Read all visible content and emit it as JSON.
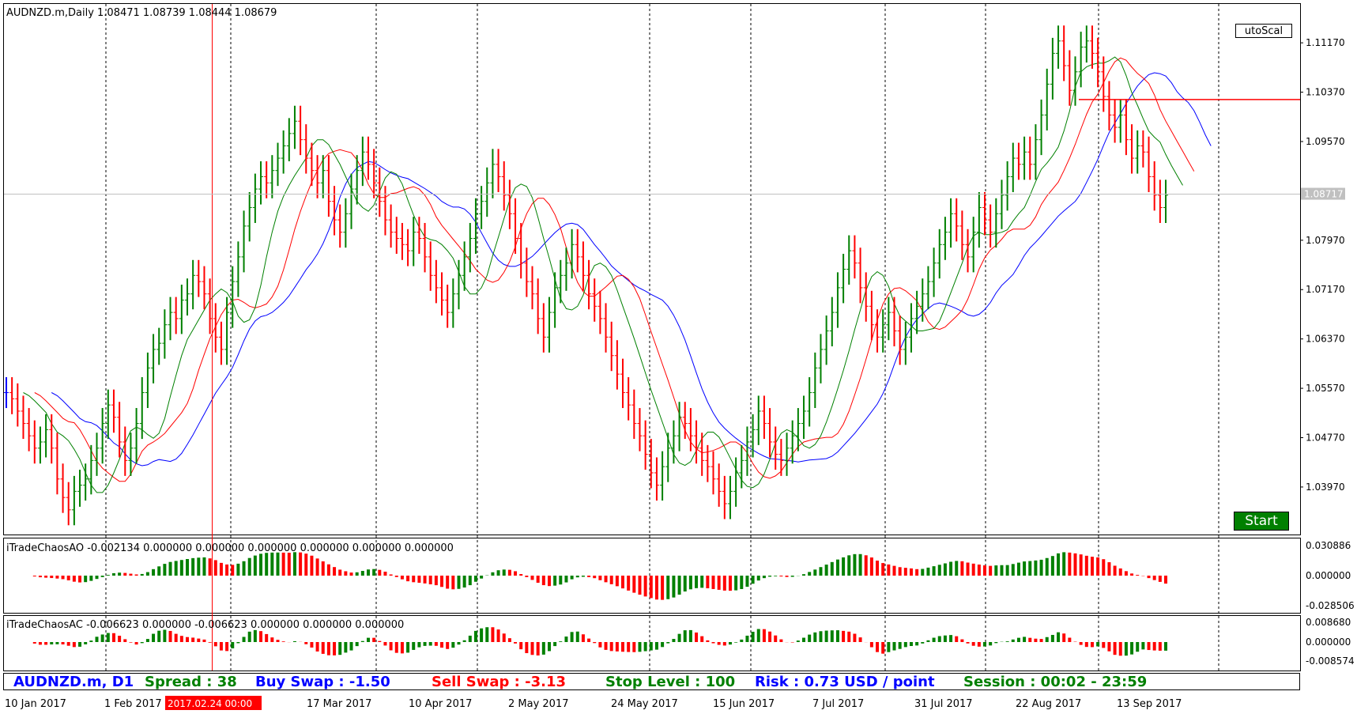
{
  "main_title": "AUDNZD.m,Daily  1.08471 1.08739 1.08444 1.08679",
  "current_price_label": "1.08717",
  "price_axis_labels": [
    "1.11170",
    "1.10370",
    "1.09570",
    "1.08717",
    "1.07970",
    "1.07170",
    "1.06370",
    "1.05570",
    "1.04770",
    "1.03970"
  ],
  "buttons": {
    "auto_scale": "utoScal",
    "start": "Start"
  },
  "ao": {
    "title": "iTradeChaosAO -0.002134 0.000000 0.000000 0.000000 0.000000 0.000000 0.000000",
    "axis_labels": [
      "0.030886",
      "0.000000",
      "-0.028506"
    ]
  },
  "ac": {
    "title": "iTradeChaosAC -0.006623 0.000000 -0.006623 0.000000 0.000000 0.000000",
    "axis_labels": [
      "0.008680",
      "0.000000",
      "-0.008574"
    ]
  },
  "status_bar": {
    "symbol": "AUDNZD.m, D1",
    "spread": "Spread :  38",
    "buy_swap": "Buy Swap :  -1.50",
    "sell_swap": "Sell Swap :  -3.13",
    "stop_level": "Stop Level :  100",
    "risk": "Risk :  0.73 USD / point",
    "session": "Session :  00:02 - 23:59"
  },
  "date_labels": [
    "10 Jan 2017",
    "1 Feb 2017",
    "17 Mar 2017",
    "10 Apr 2017",
    "2 May 2017",
    "24 May 2017",
    "15 Jun 2017",
    "7 Jul 2017",
    "31 Jul 2017",
    "22 Aug 2017",
    "13 Sep 2017"
  ],
  "crosshair_date": "2017.02.24 00:00",
  "colors": {
    "bull": "#008000",
    "bear": "#ff0000",
    "neutral": "#0000ff",
    "jaw": "#0000ff",
    "teeth": "#ff0000",
    "lips": "#008000",
    "pink": "#ff00ff"
  },
  "chart_data": {
    "type": "candlestick",
    "symbol": "AUDNZD.m",
    "timeframe": "Daily",
    "ohlc_last": {
      "open": 1.08471,
      "high": 1.08739,
      "low": 1.08444,
      "close": 1.08679
    },
    "y_range": [
      1.032,
      1.118
    ],
    "x_range": [
      "2017-01-01",
      "2017-09-25"
    ],
    "bars_close": [
      1.055,
      1.054,
      1.052,
      1.05,
      1.048,
      1.046,
      1.047,
      1.049,
      1.046,
      1.041,
      1.038,
      1.036,
      1.039,
      1.04,
      1.041,
      1.044,
      1.046,
      1.05,
      1.053,
      1.051,
      1.047,
      1.044,
      1.046,
      1.05,
      1.055,
      1.059,
      1.062,
      1.063,
      1.066,
      1.068,
      1.067,
      1.07,
      1.071,
      1.074,
      1.073,
      1.071,
      1.067,
      1.064,
      1.062,
      1.068,
      1.073,
      1.077,
      1.082,
      1.085,
      1.088,
      1.09,
      1.089,
      1.091,
      1.093,
      1.095,
      1.097,
      1.099,
      1.096,
      1.093,
      1.091,
      1.089,
      1.091,
      1.086,
      1.083,
      1.081,
      1.084,
      1.088,
      1.091,
      1.094,
      1.092,
      1.089,
      1.086,
      1.083,
      1.081,
      1.08,
      1.079,
      1.078,
      1.081,
      1.08,
      1.077,
      1.074,
      1.072,
      1.07,
      1.068,
      1.071,
      1.074,
      1.077,
      1.08,
      1.084,
      1.086,
      1.089,
      1.092,
      1.09,
      1.087,
      1.084,
      1.08,
      1.076,
      1.073,
      1.071,
      1.067,
      1.064,
      1.068,
      1.072,
      1.074,
      1.076,
      1.079,
      1.077,
      1.074,
      1.071,
      1.069,
      1.067,
      1.064,
      1.061,
      1.058,
      1.055,
      1.053,
      1.05,
      1.048,
      1.045,
      1.042,
      1.04,
      1.043,
      1.046,
      1.048,
      1.051,
      1.05,
      1.048,
      1.046,
      1.044,
      1.043,
      1.041,
      1.039,
      1.037,
      1.039,
      1.042,
      1.044,
      1.047,
      1.049,
      1.052,
      1.05,
      1.047,
      1.045,
      1.044,
      1.046,
      1.048,
      1.05,
      1.052,
      1.055,
      1.059,
      1.062,
      1.065,
      1.068,
      1.072,
      1.075,
      1.078,
      1.076,
      1.072,
      1.069,
      1.066,
      1.064,
      1.066,
      1.068,
      1.065,
      1.062,
      1.064,
      1.067,
      1.069,
      1.071,
      1.073,
      1.076,
      1.079,
      1.081,
      1.084,
      1.082,
      1.079,
      1.077,
      1.081,
      1.085,
      1.083,
      1.081,
      1.084,
      1.087,
      1.09,
      1.093,
      1.092,
      1.094,
      1.092,
      1.096,
      1.1,
      1.105,
      1.11,
      1.112,
      1.108,
      1.104,
      1.107,
      1.111,
      1.112,
      1.11,
      1.107,
      1.103,
      1.1,
      1.098,
      1.1,
      1.096,
      1.093,
      1.095,
      1.094,
      1.09,
      1.087,
      1.085,
      1.087
    ],
    "alligator": {
      "jaw_color": "blue",
      "teeth_color": "red",
      "lips_color": "green"
    },
    "ao_range": [
      -0.028506,
      0.030886
    ],
    "ac_range": [
      -0.008574,
      0.00868
    ],
    "horizontal_line": 1.1025
  }
}
